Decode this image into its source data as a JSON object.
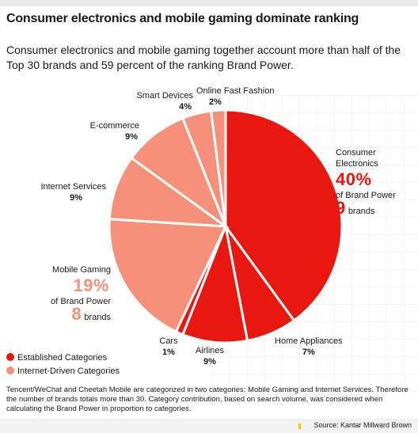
{
  "title": "Consumer electronics and mobile gaming dominate ranking",
  "subtitle": "Consumer electronics and mobile gaming together account more than half of the Top 30 brands and 59 percent of the ranking Brand Power.",
  "colors": {
    "established": "#e8170f",
    "internet": "#f5907a"
  },
  "chart_data": {
    "type": "pie",
    "unit": "% of Brand Power",
    "slices": [
      {
        "label": "Consumer Electronics",
        "value": 40,
        "pct_label": "40%",
        "group": "established",
        "sublabel": "of Brand Power",
        "brands": 9,
        "brands_unit": "brands"
      },
      {
        "label": "Home Appliances",
        "value": 7,
        "pct_label": "7%",
        "group": "established"
      },
      {
        "label": "Airlines",
        "value": 9,
        "pct_label": "9%",
        "group": "established"
      },
      {
        "label": "Cars",
        "value": 1,
        "pct_label": "1%",
        "group": "established"
      },
      {
        "label": "Mobile Gaming",
        "value": 19,
        "pct_label": "19%",
        "group": "internet",
        "sublabel": "of Brand Power",
        "brands": 8,
        "brands_unit": "brands"
      },
      {
        "label": "Internet Services",
        "value": 9,
        "pct_label": "9%",
        "group": "internet"
      },
      {
        "label": "E-commerce",
        "value": 9,
        "pct_label": "9%",
        "group": "internet"
      },
      {
        "label": "Smart Devices",
        "value": 4,
        "pct_label": "4%",
        "group": "internet"
      },
      {
        "label": "Online Fast Fashion",
        "value": 2,
        "pct_label": "2%",
        "group": "internet"
      }
    ],
    "legend": [
      {
        "label": "Established Categories",
        "group": "established"
      },
      {
        "label": "Internet-Driven Categories",
        "group": "internet"
      }
    ]
  },
  "note": "Tencent/WeChat and Cheetah Mobile are categorized in two categories: Mobile Gaming and Internet Services. Therefore the number of brands totals more than 30. Category contribution, based on search volume, was considered when calculating the Brand Power in proportion to categories.",
  "source": "Source: Kantar Millward Brown"
}
